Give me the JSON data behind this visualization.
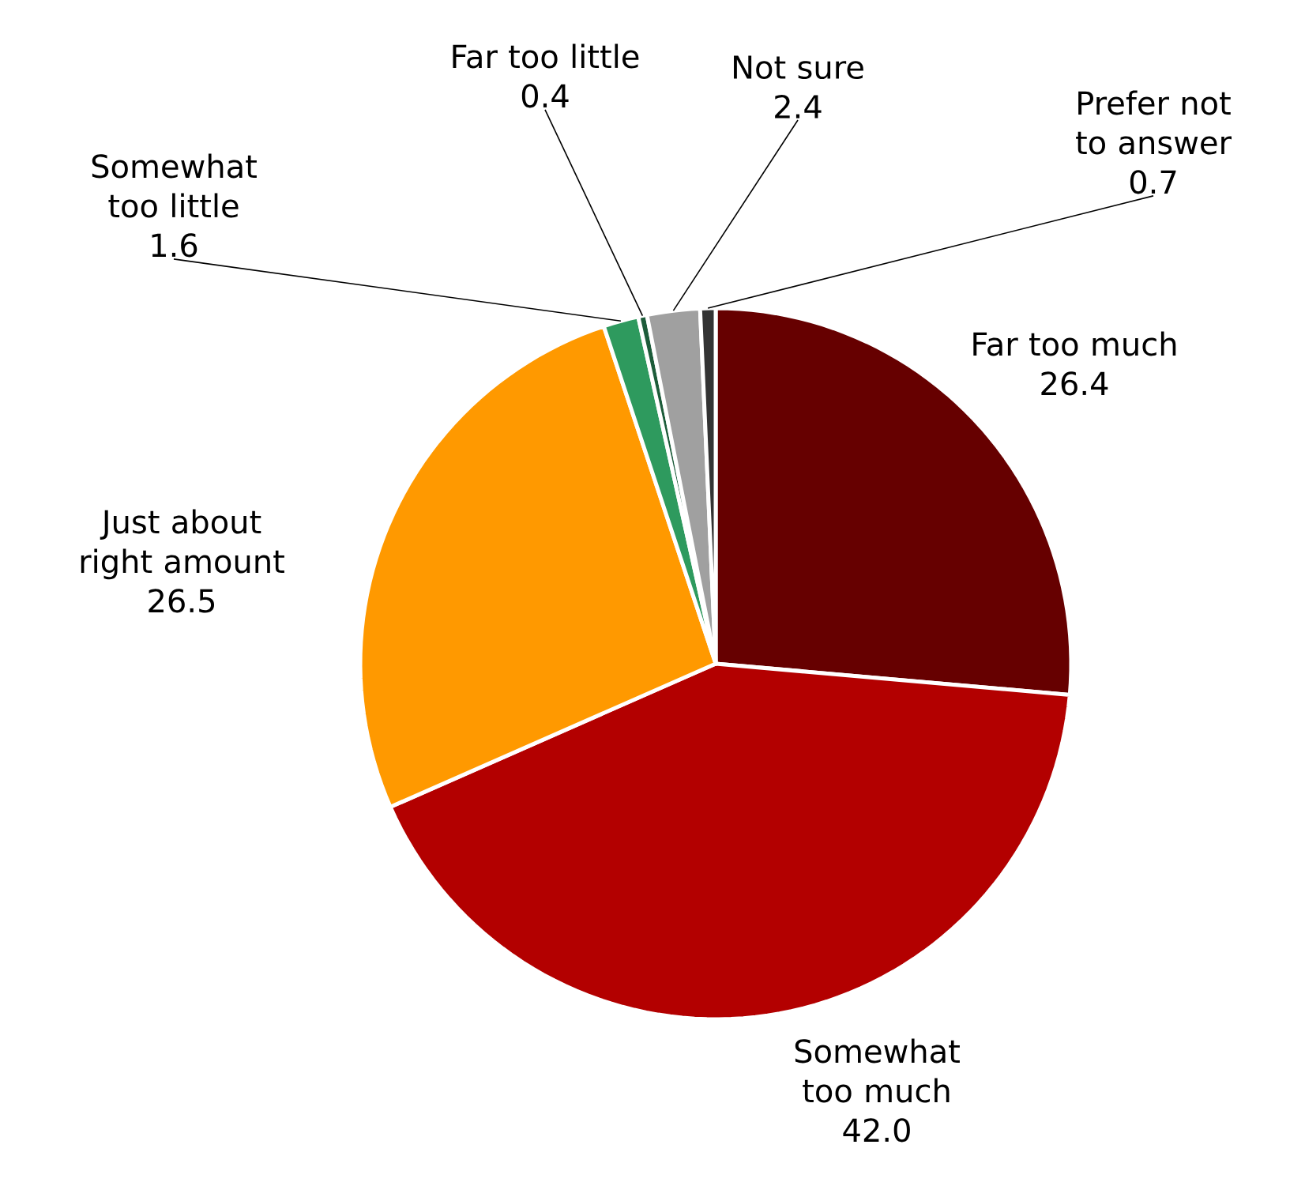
{
  "chart_data": {
    "type": "pie",
    "categories": [
      "Far too much",
      "Somewhat too much",
      "Just about right amount",
      "Somewhat too little",
      "Far too little",
      "Not sure",
      "Prefer not to answer"
    ],
    "values": [
      26.4,
      42.0,
      26.5,
      1.6,
      0.4,
      2.4,
      0.7
    ],
    "colors": [
      "#660000",
      "#b30000",
      "#ff9900",
      "#2e9a5e",
      "#1d5c3a",
      "#a0a0a0",
      "#333333"
    ],
    "value_labels": [
      "26.4",
      "42.0",
      "26.5",
      "1.6",
      "0.4",
      "2.4",
      "0.7"
    ]
  }
}
